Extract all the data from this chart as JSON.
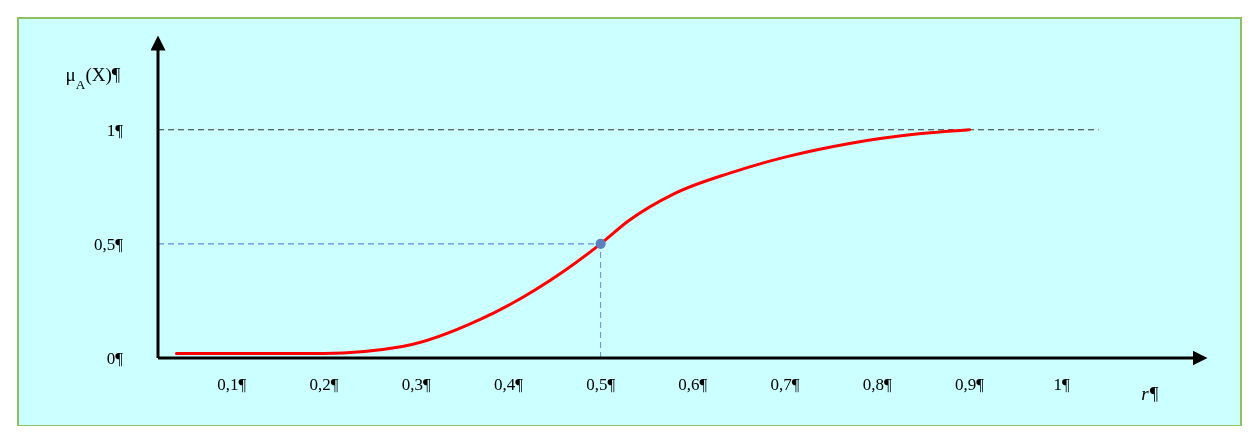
{
  "chart_data": {
    "type": "line",
    "xlabel": "r¶",
    "ylabel": "μ$_{A}$(X)¶",
    "xlim": [
      0.02,
      1.15
    ],
    "ylim": [
      0,
      1.38
    ],
    "xticks": [
      {
        "value": 0.1,
        "label": "0,1¶"
      },
      {
        "value": 0.2,
        "label": "0,2¶"
      },
      {
        "value": 0.3,
        "label": "0,3¶"
      },
      {
        "value": 0.4,
        "label": "0,4¶"
      },
      {
        "value": 0.5,
        "label": "0,5¶"
      },
      {
        "value": 0.6,
        "label": "0,6¶"
      },
      {
        "value": 0.7,
        "label": "0,7¶"
      },
      {
        "value": 0.8,
        "label": "0,8¶"
      },
      {
        "value": 0.9,
        "label": "0,9¶"
      },
      {
        "value": 1,
        "label": "1¶"
      }
    ],
    "yticks": [
      {
        "value": 0,
        "label": "0¶"
      },
      {
        "value": 0.5,
        "label": "0,5¶"
      },
      {
        "value": 1,
        "label": "1¶"
      }
    ],
    "series": [
      {
        "color": "#ff0000",
        "x": [
          0.04,
          0.1,
          0.2,
          0.285,
          0.37,
          0.46,
          0.5,
          0.53,
          0.58,
          0.64,
          0.7,
          0.77,
          0.84,
          0.9
        ],
        "values": [
          0.02,
          0.02,
          0.02,
          0.05,
          0.17,
          0.38,
          0.5,
          0.6,
          0.72,
          0.81,
          0.88,
          0.94,
          0.98,
          1.0
        ]
      },
      {
        "type": "scatter",
        "color": "#5b7fbf",
        "x": [
          0.5
        ],
        "values": [
          0.5
        ],
        "marker": "circle"
      }
    ],
    "ref_lines": [
      {
        "axis": "y",
        "value": 1,
        "color": "#333333",
        "line_style": "dashed"
      },
      {
        "axis": "y",
        "value": 0.5,
        "color": "#5b8fd9",
        "line_style": "dashed"
      },
      {
        "axis": "x",
        "value": 0.5,
        "color": "#5b8fd9",
        "line_style": "dashed"
      }
    ],
    "line_style": "solid"
  }
}
